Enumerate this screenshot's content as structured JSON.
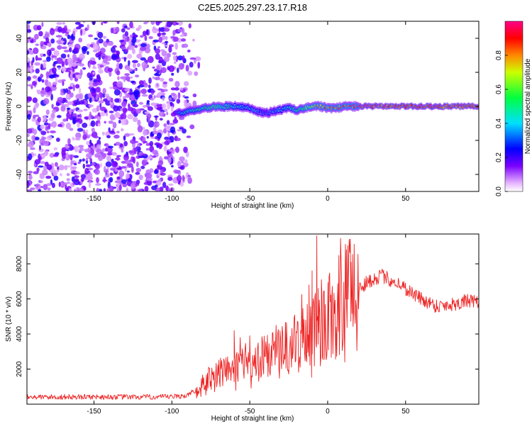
{
  "chart_data": [
    {
      "type": "heatmap",
      "title": "C2E5.2025.297.23.17.R18",
      "xlabel": "Height of straight line (km)",
      "ylabel": "Frequency (Hz)",
      "xlim": [
        -193,
        97
      ],
      "ylim": [
        -50,
        50
      ],
      "xticks": [
        -150,
        -100,
        -50,
        0,
        50
      ],
      "yticks": [
        -40,
        -20,
        0,
        20,
        40
      ],
      "noise_region_x": [
        -193,
        -85
      ],
      "signal_track": {
        "x": [
          -96,
          -90,
          -80,
          -70,
          -60,
          -50,
          -45,
          -40,
          -35,
          -30,
          -25,
          -20,
          -15,
          -10,
          -5,
          0,
          5,
          10,
          20,
          30,
          40,
          50,
          60,
          70,
          80,
          90,
          97
        ],
        "freq": [
          -4,
          -3,
          -1,
          0,
          0,
          -1,
          -3,
          -4,
          -3,
          -2,
          -1,
          -2,
          -1,
          0,
          0,
          -1,
          -1,
          0,
          0,
          0,
          0,
          0,
          0,
          0,
          0,
          0,
          0
        ],
        "amplitude": [
          0.35,
          0.45,
          0.5,
          0.55,
          0.45,
          0.4,
          0.35,
          0.3,
          0.35,
          0.4,
          0.45,
          0.5,
          0.55,
          0.7,
          0.75,
          0.8,
          0.8,
          0.85,
          0.9,
          0.9,
          0.9,
          0.9,
          0.9,
          0.9,
          0.9,
          0.9,
          0.9
        ]
      },
      "colorbar": {
        "label": "Normalized spectral amplitude",
        "range": [
          0.0,
          1.0
        ],
        "ticks": [
          "0.0",
          "0.2",
          "0.4",
          "0.6",
          "0.8"
        ],
        "tick_values": [
          0.0,
          0.2,
          0.4,
          0.6,
          0.8
        ]
      }
    },
    {
      "type": "line",
      "xlabel": "Height of straight line (km)",
      "ylabel": "SNR (10 * v/v)",
      "xlim": [
        -193,
        97
      ],
      "ylim": [
        0,
        9700
      ],
      "xticks": [
        -150,
        -100,
        -50,
        0,
        50
      ],
      "yticks": [
        2000,
        4000,
        6000,
        8000
      ],
      "series": [
        {
          "name": "SNR",
          "color": "#ee2222",
          "x": [
            -193,
            -150,
            -120,
            -100,
            -90,
            -85,
            -80,
            -75,
            -70,
            -65,
            -60,
            -55,
            -50,
            -45,
            -40,
            -35,
            -30,
            -25,
            -20,
            -15,
            -12,
            -10,
            -8,
            -5,
            -2,
            0,
            2,
            5,
            8,
            10,
            12,
            15,
            20,
            25,
            30,
            35,
            40,
            45,
            50,
            55,
            60,
            70,
            80,
            90,
            97
          ],
          "y": [
            400,
            420,
            400,
            420,
            500,
            800,
            1200,
            1500,
            1700,
            1900,
            2100,
            2300,
            2500,
            2700,
            2700,
            2900,
            3200,
            3300,
            3600,
            3800,
            4200,
            4400,
            4600,
            4300,
            4500,
            5100,
            5400,
            5700,
            6000,
            5200,
            6600,
            6500,
            6600,
            6900,
            7200,
            7300,
            7100,
            6900,
            6600,
            6300,
            6000,
            5600,
            5700,
            5900,
            5700
          ],
          "spikes": [
            {
              "x": -10,
              "y": 7600
            },
            {
              "x": -4,
              "y": 7100
            },
            {
              "x": -6,
              "y": 6600
            },
            {
              "x": -12,
              "y": 6800
            },
            {
              "x": -7,
              "y": 9600
            },
            {
              "x": 12,
              "y": 8800
            },
            {
              "x": 15,
              "y": 8100
            },
            {
              "x": 11,
              "y": 2400
            },
            {
              "x": -60,
              "y": 4200
            },
            {
              "x": -50,
              "y": 3900
            }
          ]
        }
      ]
    }
  ]
}
